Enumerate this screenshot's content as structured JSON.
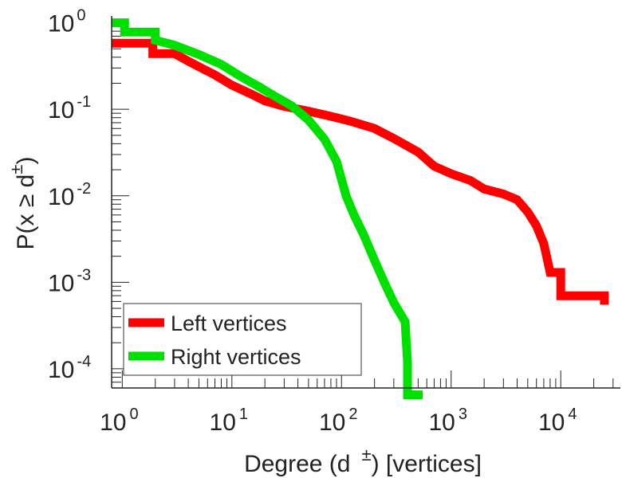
{
  "chart_data": {
    "type": "line",
    "title": "",
    "xlabel": {
      "base": "Degree (d",
      "sup": "±",
      "tail": ") [vertices]"
    },
    "ylabel": {
      "base": "P(x ≥ d",
      "sup": "±",
      "tail": ")"
    },
    "xscale": "log",
    "yscale": "log",
    "xlim": [
      0.8,
      35000
    ],
    "ylim": [
      6e-05,
      1.2
    ],
    "x_ticks": [
      {
        "value": 1,
        "base": "10",
        "exp": "0"
      },
      {
        "value": 10,
        "base": "10",
        "exp": "1"
      },
      {
        "value": 100,
        "base": "10",
        "exp": "2"
      },
      {
        "value": 1000,
        "base": "10",
        "exp": "3"
      },
      {
        "value": 10000,
        "base": "10",
        "exp": "4"
      }
    ],
    "y_ticks": [
      {
        "value": 1,
        "base": "10",
        "exp": "0"
      },
      {
        "value": 0.1,
        "base": "10",
        "exp": "-1"
      },
      {
        "value": 0.01,
        "base": "10",
        "exp": "-2"
      },
      {
        "value": 0.001,
        "base": "10",
        "exp": "-3"
      },
      {
        "value": 0.0001,
        "base": "10",
        "exp": "-4"
      }
    ],
    "legend_position": "bottom-left",
    "series": [
      {
        "name": "Left vertices",
        "color": "#ff0000",
        "points": [
          [
            0.8,
            0.58
          ],
          [
            1.9,
            0.58
          ],
          [
            1.9,
            0.44
          ],
          [
            3,
            0.44
          ],
          [
            4,
            0.36
          ],
          [
            5,
            0.31
          ],
          [
            7,
            0.25
          ],
          [
            10,
            0.19
          ],
          [
            15,
            0.15
          ],
          [
            20,
            0.125
          ],
          [
            30,
            0.108
          ],
          [
            50,
            0.095
          ],
          [
            80,
            0.083
          ],
          [
            120,
            0.073
          ],
          [
            200,
            0.06
          ],
          [
            300,
            0.046
          ],
          [
            500,
            0.032
          ],
          [
            700,
            0.022
          ],
          [
            1000,
            0.018
          ],
          [
            1500,
            0.015
          ],
          [
            2000,
            0.012
          ],
          [
            3000,
            0.0105
          ],
          [
            4000,
            0.009
          ],
          [
            5000,
            0.0065
          ],
          [
            6000,
            0.0045
          ],
          [
            7000,
            0.0028
          ],
          [
            8000,
            0.0013
          ],
          [
            10000,
            0.0013
          ],
          [
            10000,
            0.0007
          ],
          [
            25000,
            0.0007
          ],
          [
            25000,
            0.00055
          ]
        ]
      },
      {
        "name": "Right vertices",
        "color": "#00e000",
        "points": [
          [
            0.8,
            1
          ],
          [
            1.05,
            1
          ],
          [
            1.05,
            0.78
          ],
          [
            2,
            0.78
          ],
          [
            2,
            0.63
          ],
          [
            3,
            0.55
          ],
          [
            5,
            0.43
          ],
          [
            8,
            0.33
          ],
          [
            12,
            0.24
          ],
          [
            18,
            0.18
          ],
          [
            25,
            0.14
          ],
          [
            35,
            0.11
          ],
          [
            50,
            0.075
          ],
          [
            70,
            0.045
          ],
          [
            90,
            0.025
          ],
          [
            110,
            0.01
          ],
          [
            130,
            0.006
          ],
          [
            160,
            0.0035
          ],
          [
            200,
            0.0018
          ],
          [
            250,
            0.00095
          ],
          [
            300,
            0.00058
          ],
          [
            380,
            0.00035
          ],
          [
            400,
            0.00012
          ],
          [
            400,
            5e-05
          ],
          [
            550,
            5e-05
          ]
        ]
      }
    ]
  }
}
